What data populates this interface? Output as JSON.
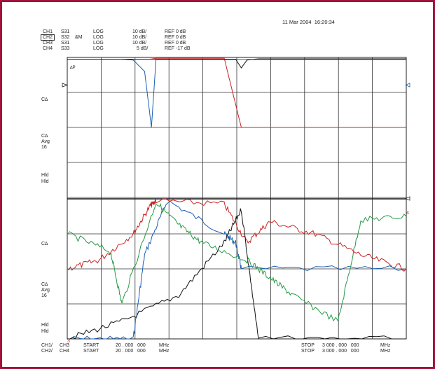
{
  "timestamp": "11 Mar 2004  16:20:34",
  "channels": [
    {
      "id": "CH1",
      "param": "S31",
      "extra": "",
      "format": "LOG",
      "scale": "10 dB/",
      "ref": "REF 0 dB"
    },
    {
      "id": "CH2",
      "param": "S32",
      "extra": "&M",
      "format": "LOG",
      "scale": "10 dB/",
      "ref": "REF 0 dB"
    },
    {
      "id": "CH3",
      "param": "S31",
      "extra": "",
      "format": "LOG",
      "scale": "10 dB/",
      "ref": "REF 0 dB"
    },
    {
      "id": "CH4",
      "param": "S33",
      "extra": "",
      "format": "LOG",
      "scale": "5 dB/",
      "ref": "REF -17 dB"
    }
  ],
  "left_annotations": {
    "upper": {
      "c1": "C∆",
      "c2a": "C∆",
      "c2b": "Avg",
      "c2c": "16",
      "h1": "Hld",
      "h2": "Hld"
    },
    "lower": {
      "c1": "C∆",
      "c2a": "C∆",
      "c2b": "Avg",
      "c2c": "16",
      "h1": "Hld",
      "h2": "Hld"
    }
  },
  "marker_label": "∆P",
  "trace_label_4": "4",
  "trace_label_3": "3",
  "footer": {
    "row1": {
      "ch": "CH1/",
      "chb": "CH3",
      "start": "START",
      "start_val": "20 . 000   000",
      "unit": "MHz",
      "stop": "STOP",
      "stop_val": "3 000 . 000   000",
      "stop_unit": "MHz"
    },
    "row2": {
      "ch": "CH2/",
      "chb": "CH4",
      "start": "START",
      "start_val": "20 . 000   000",
      "unit": "MHz",
      "stop": "STOP",
      "stop_val": "3 000 . 000   000",
      "stop_unit": "MHz"
    }
  },
  "chart_data": {
    "type": "line",
    "x_range_mhz": [
      20,
      3000
    ],
    "grid": {
      "divisions_x": 10,
      "divisions_y": 8,
      "panels": 2
    },
    "panels": [
      {
        "position": "upper",
        "series": [
          {
            "color": "#1a5fb4",
            "style": "bandpass S31",
            "x": [
              20,
              500,
              600,
              700,
              760,
              800,
              1500,
              3000
            ],
            "y_div": [
              0.1,
              0.1,
              0.15,
              0.8,
              4.0,
              0.12,
              0.12,
              0.12
            ]
          },
          {
            "color": "#cc2222",
            "style": "bandpass S32",
            "x": [
              20,
              600,
              750,
              800,
              1400,
              1550,
              3000
            ],
            "y_div": [
              0.1,
              0.1,
              0.1,
              0.05,
              0.05,
              4.0,
              4.0
            ]
          },
          {
            "color": "#111111",
            "style": "highpass",
            "x": [
              20,
              1500,
              1550,
              1600,
              1700,
              3000
            ],
            "y_div": [
              0.1,
              0.1,
              0.6,
              0.15,
              0.08,
              0.08
            ]
          }
        ]
      },
      {
        "position": "lower",
        "series": [
          {
            "color": "#1a5fb4",
            "x": [
              20,
              600,
              700,
              900,
              1400,
              1500,
              1550,
              3000
            ],
            "y_div": [
              8,
              8,
              3.2,
              0.1,
              2.0,
              2.5,
              4.0,
              4.0
            ]
          },
          {
            "color": "#cc2222",
            "x": [
              20,
              300,
              600,
              750,
              800,
              1400,
              1600,
              1800,
              2200,
              2600,
              3000
            ],
            "y_div": [
              4,
              3.5,
              2.0,
              0.4,
              0.1,
              0.3,
              2.5,
              1.3,
              2.0,
              3.2,
              4.0
            ]
          },
          {
            "color": "#111111",
            "x": [
              20,
              500,
              1000,
              1400,
              1550,
              1700,
              3000
            ],
            "y_div": [
              8,
              7,
              5.5,
              2.5,
              0.6,
              8,
              8
            ]
          },
          {
            "color": "#229944",
            "x": [
              20,
              400,
              500,
              800,
              1000,
              1200,
              1600,
              1800,
              2000,
              2400,
              2600,
              3000
            ],
            "y_div": [
              2,
              3,
              6,
              0.2,
              1.5,
              2.5,
              3.5,
              4.5,
              5.5,
              7,
              1.2,
              1.0
            ]
          }
        ]
      }
    ]
  }
}
